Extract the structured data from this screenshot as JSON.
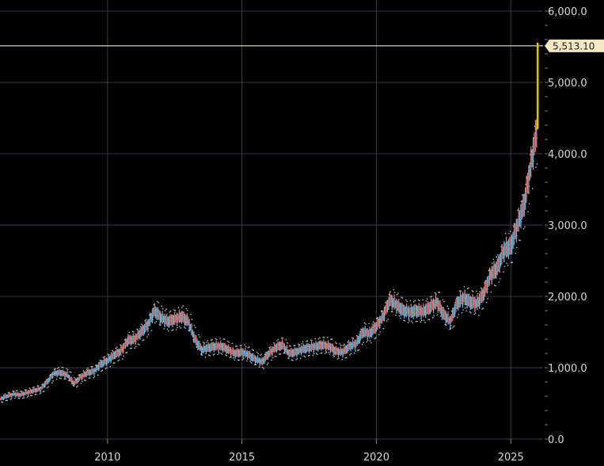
{
  "chart_data": {
    "type": "candlestick",
    "title": "",
    "xlabel": "",
    "ylabel": "",
    "ylim": [
      0,
      6000
    ],
    "xlim": [
      2006.0,
      2026.2
    ],
    "grid": true,
    "legend": "none",
    "y_ticks": [
      "6,000.0",
      "5,000.0",
      "4,000.0",
      "3,000.0",
      "2,000.0",
      "1,000.0",
      "0.0"
    ],
    "y_tick_values": [
      6000,
      5000,
      4000,
      3000,
      2000,
      1000,
      0
    ],
    "x_ticks": [
      "2010",
      "2015",
      "2020",
      "2025"
    ],
    "x_tick_values": [
      2010,
      2015,
      2020,
      2025
    ],
    "last_price_label": "5,513.10",
    "last_price": 5513.1,
    "colors": {
      "up": "#e0706a",
      "down": "#5fb8dc",
      "dots": "#b8c8d0",
      "last_bar": "#d9c900",
      "price_line": "#f0e6b8",
      "grid": "#3a3a4a",
      "axis_text": "#d6d6d6"
    },
    "series": [
      {
        "x": [
          2006.0,
          2006.25,
          2006.5,
          2006.75,
          2007.0,
          2007.25,
          2007.5,
          2007.75,
          2008.0,
          2008.25,
          2008.5,
          2008.75,
          2009.0,
          2009.25,
          2009.5,
          2009.75,
          2010.0,
          2010.25,
          2010.5,
          2010.75,
          2011.0,
          2011.25,
          2011.5,
          2011.75,
          2012.0,
          2012.25,
          2012.5,
          2012.75,
          2013.0,
          2013.25,
          2013.5,
          2013.75,
          2014.0,
          2014.25,
          2014.5,
          2014.75,
          2015.0,
          2015.25,
          2015.5,
          2015.75,
          2016.0,
          2016.25,
          2016.5,
          2016.75,
          2017.0,
          2017.25,
          2017.5,
          2017.75,
          2018.0,
          2018.25,
          2018.5,
          2018.75,
          2019.0,
          2019.25,
          2019.5,
          2019.75,
          2020.0,
          2020.25,
          2020.5,
          2020.75,
          2021.0,
          2021.25,
          2021.5,
          2021.75,
          2022.0,
          2022.25,
          2022.5,
          2022.75,
          2023.0,
          2023.25,
          2023.5,
          2023.75,
          2024.0,
          2024.25,
          2024.5,
          2024.75,
          2025.0,
          2025.25,
          2025.5,
          2025.75,
          2026.0
        ],
        "y": [
          560,
          600,
          630,
          620,
          650,
          680,
          700,
          800,
          920,
          930,
          900,
          780,
          870,
          930,
          950,
          1050,
          1100,
          1180,
          1230,
          1380,
          1400,
          1500,
          1600,
          1800,
          1700,
          1650,
          1680,
          1720,
          1650,
          1400,
          1250,
          1280,
          1300,
          1300,
          1250,
          1200,
          1220,
          1180,
          1120,
          1080,
          1200,
          1280,
          1320,
          1200,
          1220,
          1260,
          1280,
          1300,
          1320,
          1300,
          1230,
          1220,
          1300,
          1340,
          1500,
          1480,
          1580,
          1720,
          1950,
          1880,
          1800,
          1780,
          1800,
          1790,
          1850,
          1920,
          1750,
          1650,
          1900,
          1980,
          1920,
          1900,
          2050,
          2300,
          2400,
          2650,
          2700,
          3000,
          3300,
          3850,
          4400
        ]
      }
    ]
  }
}
